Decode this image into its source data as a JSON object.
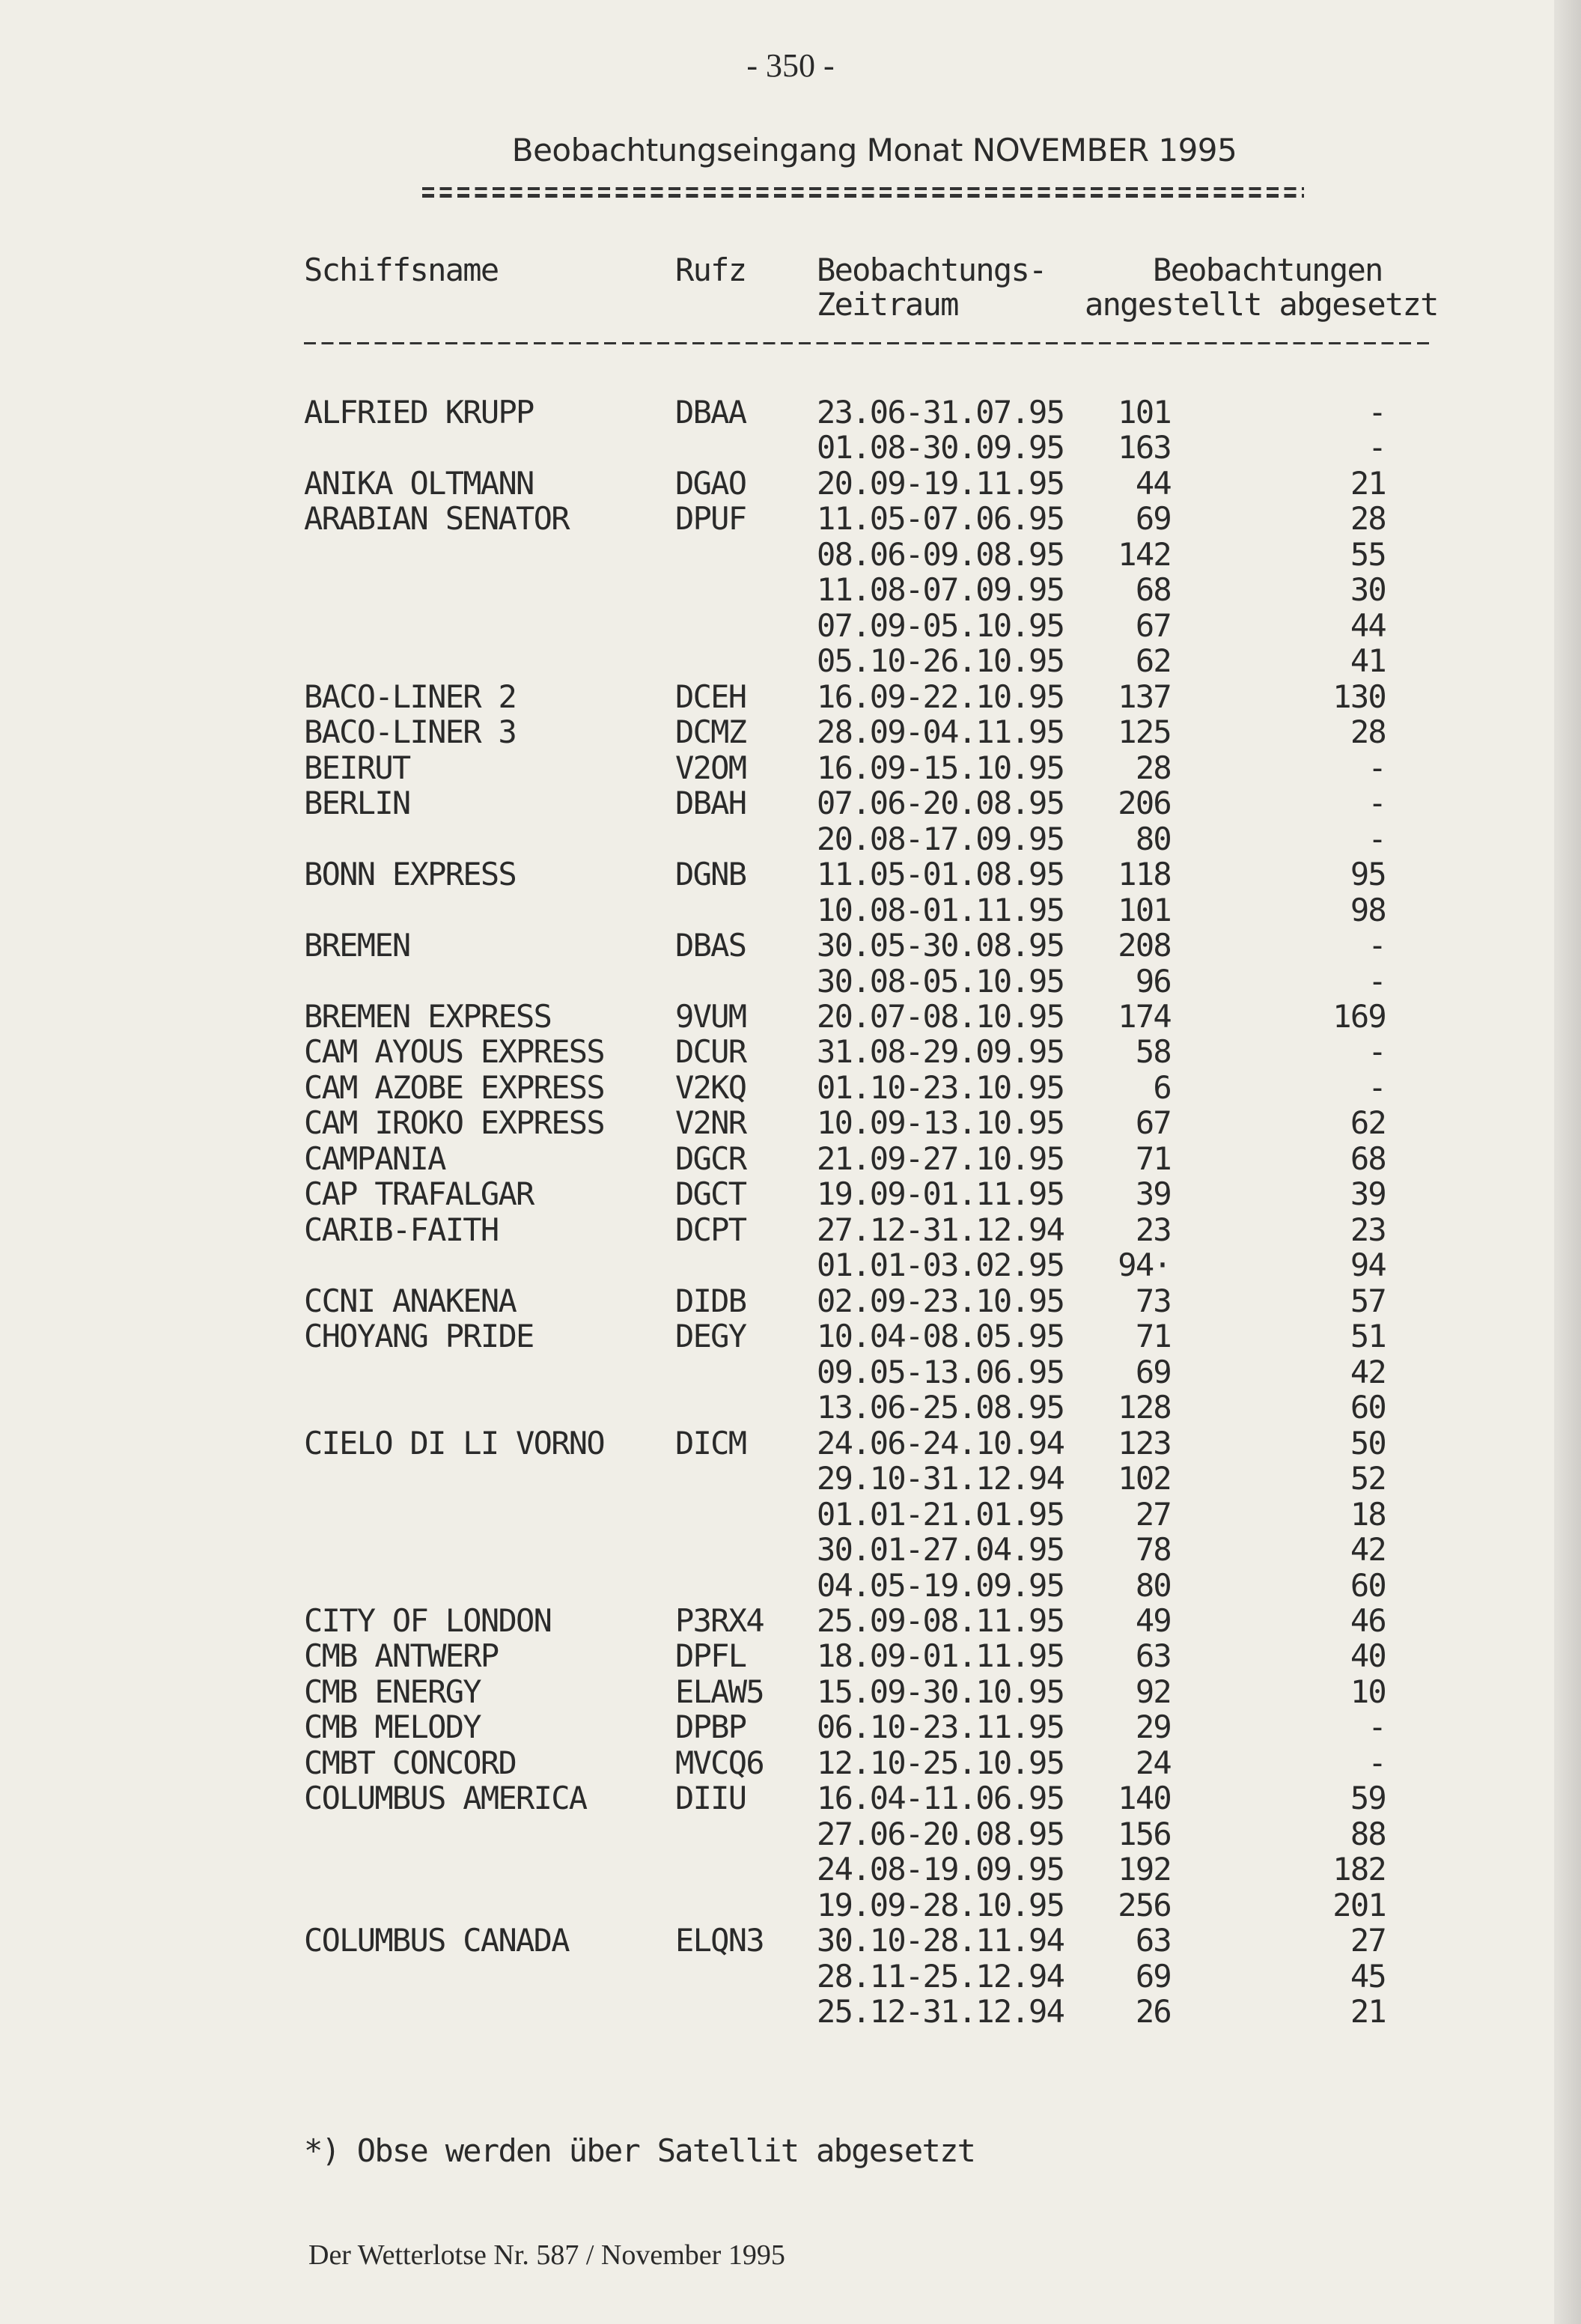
{
  "page_number": "- 350 -",
  "title": "Beobachtungseingang Monat NOVEMBER 1995",
  "headers": {
    "name": "Schiffsname",
    "callsign": "Rufz",
    "period_1": "Beobachtungs-",
    "period_2": "Zeitraum",
    "obs_1": "Beobachtungen",
    "obs_2": "angestellt abgesetzt"
  },
  "rows": [
    [
      "ALFRIED KRUPP",
      "DBAA",
      "23.06-31.07.95",
      "101",
      "-"
    ],
    [
      "",
      "",
      "01.08-30.09.95",
      "163",
      "-"
    ],
    [
      "ANIKA OLTMANN",
      "DGAO",
      "20.09-19.11.95",
      "44",
      "21"
    ],
    [
      "ARABIAN SENATOR",
      "DPUF",
      "11.05-07.06.95",
      "69",
      "28"
    ],
    [
      "",
      "",
      "08.06-09.08.95",
      "142",
      "55"
    ],
    [
      "",
      "",
      "11.08-07.09.95",
      "68",
      "30"
    ],
    [
      "",
      "",
      "07.09-05.10.95",
      "67",
      "44"
    ],
    [
      "",
      "",
      "05.10-26.10.95",
      "62",
      "41"
    ],
    [
      "BACO-LINER 2",
      "DCEH",
      "16.09-22.10.95",
      "137",
      "130"
    ],
    [
      "BACO-LINER 3",
      "DCMZ",
      "28.09-04.11.95",
      "125",
      "28"
    ],
    [
      "BEIRUT",
      "V2OM",
      "16.09-15.10.95",
      "28",
      "-"
    ],
    [
      "BERLIN",
      "DBAH",
      "07.06-20.08.95",
      "206",
      "-"
    ],
    [
      "",
      "",
      "20.08-17.09.95",
      "80",
      "-"
    ],
    [
      "BONN EXPRESS",
      "DGNB",
      "11.05-01.08.95",
      "118",
      "95"
    ],
    [
      "",
      "",
      "10.08-01.11.95",
      "101",
      "98"
    ],
    [
      "BREMEN",
      "DBAS",
      "30.05-30.08.95",
      "208",
      "-"
    ],
    [
      "",
      "",
      "30.08-05.10.95",
      "96",
      "-"
    ],
    [
      "BREMEN EXPRESS",
      "9VUM",
      "20.07-08.10.95",
      "174",
      "169"
    ],
    [
      "CAM AYOUS EXPRESS",
      "DCUR",
      "31.08-29.09.95",
      "58",
      "-"
    ],
    [
      "CAM AZOBE EXPRESS",
      "V2KQ",
      "01.10-23.10.95",
      "6",
      "-"
    ],
    [
      "CAM IROKO EXPRESS",
      "V2NR",
      "10.09-13.10.95",
      "67",
      "62"
    ],
    [
      "CAMPANIA",
      "DGCR",
      "21.09-27.10.95",
      "71",
      "68"
    ],
    [
      "CAP TRAFALGAR",
      "DGCT",
      "19.09-01.11.95",
      "39",
      "39"
    ],
    [
      "CARIB-FAITH",
      "DCPT",
      "27.12-31.12.94",
      "23",
      "23"
    ],
    [
      "",
      "",
      "01.01-03.02.95",
      "94·",
      "94"
    ],
    [
      "CCNI ANAKENA",
      "DIDB",
      "02.09-23.10.95",
      "73",
      "57"
    ],
    [
      "CHOYANG PRIDE",
      "DEGY",
      "10.04-08.05.95",
      "71",
      "51"
    ],
    [
      "",
      "",
      "09.05-13.06.95",
      "69",
      "42"
    ],
    [
      "",
      "",
      "13.06-25.08.95",
      "128",
      "60"
    ],
    [
      "CIELO DI LI VORNO",
      "DICM",
      "24.06-24.10.94",
      "123",
      "50"
    ],
    [
      "",
      "",
      "29.10-31.12.94",
      "102",
      "52"
    ],
    [
      "",
      "",
      "01.01-21.01.95",
      "27",
      "18"
    ],
    [
      "",
      "",
      "30.01-27.04.95",
      "78",
      "42"
    ],
    [
      "",
      "",
      "04.05-19.09.95",
      "80",
      "60"
    ],
    [
      "CITY OF LONDON",
      "P3RX4",
      "25.09-08.11.95",
      "49",
      "46"
    ],
    [
      "CMB ANTWERP",
      "DPFL",
      "18.09-01.11.95",
      "63",
      "40"
    ],
    [
      "CMB ENERGY",
      "ELAW5",
      "15.09-30.10.95",
      "92",
      "10"
    ],
    [
      "CMB MELODY",
      "DPBP",
      "06.10-23.11.95",
      "29",
      "-"
    ],
    [
      "CMBT CONCORD",
      "MVCQ6",
      "12.10-25.10.95",
      "24",
      "-"
    ],
    [
      "COLUMBUS AMERICA",
      "DIIU",
      "16.04-11.06.95",
      "140",
      "59"
    ],
    [
      "",
      "",
      "27.06-20.08.95",
      "156",
      "88"
    ],
    [
      "",
      "",
      "24.08-19.09.95",
      "192",
      "182"
    ],
    [
      "",
      "",
      "19.09-28.10.95",
      "256",
      "201"
    ],
    [
      "COLUMBUS CANADA",
      "ELQN3",
      "30.10-28.11.94",
      "63",
      "27"
    ],
    [
      "",
      "",
      "28.11-25.12.94",
      "69",
      "45"
    ],
    [
      "",
      "",
      "25.12-31.12.94",
      "26",
      "21"
    ]
  ],
  "footnote": "*) Obse werden über Satellit abgesetzt",
  "footer": "Der Wetterlotse Nr. 587 / November 1995"
}
